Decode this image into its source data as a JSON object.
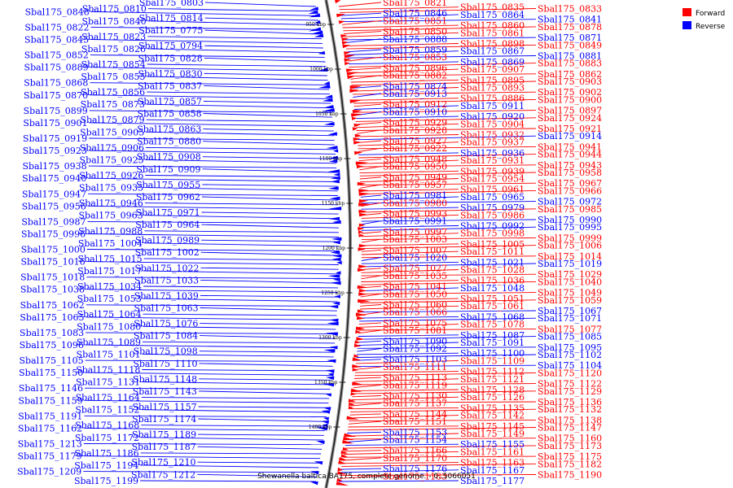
{
  "title": "Shewanella baltica BA175, complete genome. - 0..5066051",
  "legend": [
    {
      "label": "Forward",
      "color": "#ff0000"
    },
    {
      "label": "Reverse",
      "color": "#0000ff"
    }
  ],
  "ticks": [
    "950 kbp",
    "1000 kbp",
    "1050 kbp",
    "1100 kbp",
    "1150 kbp",
    "1200 kbp",
    "1250 kbp",
    "1300 kbp",
    "1350 kbp",
    "1400 kbp"
  ],
  "left_labels": [
    {
      "text": "Sbal175_0803",
      "color": "#0000ff"
    },
    {
      "text": "Sbal175_0810",
      "color": "#0000ff"
    },
    {
      "text": "Sbal175_0848",
      "color": "#0000ff"
    },
    {
      "text": "Sbal175_0814",
      "color": "#0000ff"
    },
    {
      "text": "Sbal175_0840",
      "color": "#0000ff"
    },
    {
      "text": "Sbal175_0822",
      "color": "#0000ff"
    },
    {
      "text": "Sbal175_0775",
      "color": "#0000ff"
    },
    {
      "text": "Sbal175_0823",
      "color": "#0000ff"
    },
    {
      "text": "Sbal175_0845",
      "color": "#0000ff"
    },
    {
      "text": "Sbal175_0794",
      "color": "#0000ff"
    },
    {
      "text": "Sbal175_0826",
      "color": "#0000ff"
    },
    {
      "text": "Sbal175_0852",
      "color": "#0000ff"
    },
    {
      "text": "Sbal175_0828",
      "color": "#0000ff"
    },
    {
      "text": "Sbal175_0854",
      "color": "#0000ff"
    },
    {
      "text": "Sbal175_0889",
      "color": "#0000ff"
    },
    {
      "text": "Sbal175_0830",
      "color": "#0000ff"
    },
    {
      "text": "Sbal175_0855",
      "color": "#0000ff"
    },
    {
      "text": "Sbal175_0868",
      "color": "#0000ff"
    },
    {
      "text": "Sbal175_0837",
      "color": "#0000ff"
    },
    {
      "text": "Sbal175_0856",
      "color": "#0000ff"
    },
    {
      "text": "Sbal175_0870",
      "color": "#0000ff"
    },
    {
      "text": "Sbal175_0857",
      "color": "#0000ff"
    },
    {
      "text": "Sbal175_0873",
      "color": "#0000ff"
    },
    {
      "text": "Sbal175_0899",
      "color": "#0000ff"
    },
    {
      "text": "Sbal175_0858",
      "color": "#0000ff"
    },
    {
      "text": "Sbal175_0879",
      "color": "#0000ff"
    },
    {
      "text": "Sbal175_0901",
      "color": "#0000ff"
    },
    {
      "text": "Sbal175_0863",
      "color": "#0000ff"
    },
    {
      "text": "Sbal175_0905",
      "color": "#0000ff"
    },
    {
      "text": "Sbal175_0919",
      "color": "#0000ff"
    },
    {
      "text": "Sbal175_0880",
      "color": "#0000ff"
    },
    {
      "text": "Sbal175_0906",
      "color": "#0000ff"
    },
    {
      "text": "Sbal175_0923",
      "color": "#0000ff"
    },
    {
      "text": "Sbal175_0908",
      "color": "#0000ff"
    },
    {
      "text": "Sbal175_0925",
      "color": "#0000ff"
    },
    {
      "text": "Sbal175_0938",
      "color": "#0000ff"
    },
    {
      "text": "Sbal175_0909",
      "color": "#0000ff"
    },
    {
      "text": "Sbal175_0926",
      "color": "#0000ff"
    },
    {
      "text": "Sbal175_0940",
      "color": "#0000ff"
    },
    {
      "text": "Sbal175_0955",
      "color": "#0000ff"
    },
    {
      "text": "Sbal175_0935",
      "color": "#0000ff"
    },
    {
      "text": "Sbal175_0947",
      "color": "#0000ff"
    },
    {
      "text": "Sbal175_0962",
      "color": "#0000ff"
    },
    {
      "text": "Sbal175_0946",
      "color": "#0000ff"
    },
    {
      "text": "Sbal175_0956",
      "color": "#0000ff"
    },
    {
      "text": "Sbal175_0971",
      "color": "#0000ff"
    },
    {
      "text": "Sbal175_0963",
      "color": "#0000ff"
    },
    {
      "text": "Sbal175_0987",
      "color": "#0000ff"
    },
    {
      "text": "Sbal175_0964",
      "color": "#0000ff"
    },
    {
      "text": "Sbal175_0988",
      "color": "#0000ff"
    },
    {
      "text": "Sbal175_0996",
      "color": "#0000ff"
    },
    {
      "text": "Sbal175_0989",
      "color": "#0000ff"
    },
    {
      "text": "Sbal175_1004",
      "color": "#0000ff"
    },
    {
      "text": "Sbal175_1000",
      "color": "#0000ff"
    },
    {
      "text": "Sbal175_1002",
      "color": "#0000ff"
    },
    {
      "text": "Sbal175_1015",
      "color": "#0000ff"
    },
    {
      "text": "Sbal175_1016",
      "color": "#0000ff"
    },
    {
      "text": "Sbal175_1022",
      "color": "#0000ff"
    },
    {
      "text": "Sbal175_1017",
      "color": "#0000ff"
    },
    {
      "text": "Sbal175_1018",
      "color": "#0000ff"
    },
    {
      "text": "Sbal175_1033",
      "color": "#0000ff"
    },
    {
      "text": "Sbal175_1034",
      "color": "#0000ff"
    },
    {
      "text": "Sbal175_1038",
      "color": "#0000ff"
    },
    {
      "text": "Sbal175_1039",
      "color": "#0000ff"
    },
    {
      "text": "Sbal175_1053",
      "color": "#0000ff"
    },
    {
      "text": "Sbal175_1062",
      "color": "#0000ff"
    },
    {
      "text": "Sbal175_1063",
      "color": "#0000ff"
    },
    {
      "text": "Sbal175_1064",
      "color": "#0000ff"
    },
    {
      "text": "Sbal175_1065",
      "color": "#0000ff"
    },
    {
      "text": "Sbal175_1076",
      "color": "#0000ff"
    },
    {
      "text": "Sbal175_1080",
      "color": "#0000ff"
    },
    {
      "text": "Sbal175_1083",
      "color": "#0000ff"
    },
    {
      "text": "Sbal175_1084",
      "color": "#0000ff"
    },
    {
      "text": "Sbal175_1089",
      "color": "#0000ff"
    },
    {
      "text": "Sbal175_1096",
      "color": "#0000ff"
    },
    {
      "text": "Sbal175_1098",
      "color": "#0000ff"
    },
    {
      "text": "Sbal175_1101",
      "color": "#0000ff"
    },
    {
      "text": "Sbal175_1105",
      "color": "#0000ff"
    },
    {
      "text": "Sbal175_1110",
      "color": "#0000ff"
    },
    {
      "text": "Sbal175_1118",
      "color": "#0000ff"
    },
    {
      "text": "Sbal175_1150",
      "color": "#0000ff"
    },
    {
      "text": "Sbal175_1148",
      "color": "#0000ff"
    },
    {
      "text": "Sbal175_1131",
      "color": "#0000ff"
    },
    {
      "text": "Sbal175_1146",
      "color": "#0000ff"
    },
    {
      "text": "Sbal175_1143",
      "color": "#0000ff"
    },
    {
      "text": "Sbal175_1164",
      "color": "#0000ff"
    },
    {
      "text": "Sbal175_1159",
      "color": "#0000ff"
    },
    {
      "text": "Sbal175_1157",
      "color": "#0000ff"
    },
    {
      "text": "Sbal175_1152",
      "color": "#0000ff"
    },
    {
      "text": "Sbal175_1191",
      "color": "#0000ff"
    },
    {
      "text": "Sbal175_1174",
      "color": "#0000ff"
    },
    {
      "text": "Sbal175_1168",
      "color": "#0000ff"
    },
    {
      "text": "Sbal175_1162",
      "color": "#0000ff"
    },
    {
      "text": "Sbal175_1189",
      "color": "#0000ff"
    },
    {
      "text": "Sbal175_1172",
      "color": "#0000ff"
    },
    {
      "text": "Sbal175_1213",
      "color": "#0000ff"
    },
    {
      "text": "Sbal175_1187",
      "color": "#0000ff"
    },
    {
      "text": "Sbal175_1186",
      "color": "#0000ff"
    },
    {
      "text": "Sbal175_1179",
      "color": "#0000ff"
    },
    {
      "text": "Sbal175_1210",
      "color": "#0000ff"
    },
    {
      "text": "Sbal175_1194",
      "color": "#0000ff"
    },
    {
      "text": "Sbal175_1209",
      "color": "#0000ff"
    },
    {
      "text": "Sbal175_1212",
      "color": "#0000ff"
    },
    {
      "text": "Sbal175_1199",
      "color": "#0000ff"
    }
  ],
  "right_labels": [
    {
      "text": "Sbal175_0821",
      "color": "#ff0000"
    },
    {
      "text": "Sbal175_0835",
      "color": "#ff0000"
    },
    {
      "text": "Sbal175_0833",
      "color": "#ff0000"
    },
    {
      "text": "Sbal175_0846",
      "color": "#0000ff"
    },
    {
      "text": "Sbal175_0864",
      "color": "#0000ff"
    },
    {
      "text": "Sbal175_0841",
      "color": "#0000ff"
    },
    {
      "text": "Sbal175_0851",
      "color": "#ff0000"
    },
    {
      "text": "Sbal175_0860",
      "color": "#ff0000"
    },
    {
      "text": "Sbal175_0878",
      "color": "#ff0000"
    },
    {
      "text": "Sbal175_0850",
      "color": "#ff0000"
    },
    {
      "text": "Sbal175_0861",
      "color": "#ff0000"
    },
    {
      "text": "Sbal175_0871",
      "color": "#0000ff"
    },
    {
      "text": "Sbal175_0888",
      "color": "#0000ff"
    },
    {
      "text": "Sbal175_0898",
      "color": "#ff0000"
    },
    {
      "text": "Sbal175_0849",
      "color": "#ff0000"
    },
    {
      "text": "Sbal175_0859",
      "color": "#0000ff"
    },
    {
      "text": "Sbal175_0867",
      "color": "#0000ff"
    },
    {
      "text": "Sbal175_0881",
      "color": "#0000ff"
    },
    {
      "text": "Sbal175_0853",
      "color": "#ff0000"
    },
    {
      "text": "Sbal175_0869",
      "color": "#0000ff"
    },
    {
      "text": "Sbal175_0883",
      "color": "#ff0000"
    },
    {
      "text": "Sbal175_0896",
      "color": "#ff0000"
    },
    {
      "text": "Sbal175_0907",
      "color": "#ff0000"
    },
    {
      "text": "Sbal175_0862",
      "color": "#ff0000"
    },
    {
      "text": "Sbal175_0882",
      "color": "#ff0000"
    },
    {
      "text": "Sbal175_0895",
      "color": "#ff0000"
    },
    {
      "text": "Sbal175_0903",
      "color": "#ff0000"
    },
    {
      "text": "Sbal175_0874",
      "color": "#0000ff"
    },
    {
      "text": "Sbal175_0893",
      "color": "#ff0000"
    },
    {
      "text": "Sbal175_0902",
      "color": "#ff0000"
    },
    {
      "text": "Sbal175_0913",
      "color": "#0000ff"
    },
    {
      "text": "Sbal175_0886",
      "color": "#ff0000"
    },
    {
      "text": "Sbal175_0900",
      "color": "#ff0000"
    },
    {
      "text": "Sbal175_0912",
      "color": "#ff0000"
    },
    {
      "text": "Sbal175_0911",
      "color": "#0000ff"
    },
    {
      "text": "Sbal175_0897",
      "color": "#ff0000"
    },
    {
      "text": "Sbal175_0910",
      "color": "#0000ff"
    },
    {
      "text": "Sbal175_0920",
      "color": "#0000ff"
    },
    {
      "text": "Sbal175_0924",
      "color": "#ff0000"
    },
    {
      "text": "Sbal175_0929",
      "color": "#ff0000"
    },
    {
      "text": "Sbal175_0904",
      "color": "#ff0000"
    },
    {
      "text": "Sbal175_0921",
      "color": "#ff0000"
    },
    {
      "text": "Sbal175_0928",
      "color": "#ff0000"
    },
    {
      "text": "Sbal175_0932",
      "color": "#ff0000"
    },
    {
      "text": "Sbal175_0914",
      "color": "#0000ff"
    },
    {
      "text": "Sbal175_0927",
      "color": "#ff0000"
    },
    {
      "text": "Sbal175_0937",
      "color": "#ff0000"
    },
    {
      "text": "Sbal175_0941",
      "color": "#ff0000"
    },
    {
      "text": "Sbal175_0922",
      "color": "#ff0000"
    },
    {
      "text": "Sbal175_0936",
      "color": "#0000ff"
    },
    {
      "text": "Sbal175_0944",
      "color": "#ff0000"
    },
    {
      "text": "Sbal175_0948",
      "color": "#ff0000"
    },
    {
      "text": "Sbal175_0931",
      "color": "#ff0000"
    },
    {
      "text": "Sbal175_0943",
      "color": "#ff0000"
    },
    {
      "text": "Sbal175_0950",
      "color": "#ff0000"
    },
    {
      "text": "Sbal175_0939",
      "color": "#ff0000"
    },
    {
      "text": "Sbal175_0958",
      "color": "#ff0000"
    },
    {
      "text": "Sbal175_0949",
      "color": "#ff0000"
    },
    {
      "text": "Sbal175_0954",
      "color": "#ff0000"
    },
    {
      "text": "Sbal175_0967",
      "color": "#ff0000"
    },
    {
      "text": "Sbal175_0957",
      "color": "#ff0000"
    },
    {
      "text": "Sbal175_0961",
      "color": "#ff0000"
    },
    {
      "text": "Sbal175_0966",
      "color": "#ff0000"
    },
    {
      "text": "Sbal175_0981",
      "color": "#0000ff"
    },
    {
      "text": "Sbal175_0965",
      "color": "#0000ff"
    },
    {
      "text": "Sbal175_0972",
      "color": "#0000ff"
    },
    {
      "text": "Sbal175_0980",
      "color": "#ff0000"
    },
    {
      "text": "Sbal175_0979",
      "color": "#0000ff"
    },
    {
      "text": "Sbal175_0985",
      "color": "#ff0000"
    },
    {
      "text": "Sbal175_0993",
      "color": "#ff0000"
    },
    {
      "text": "Sbal175_0986",
      "color": "#ff0000"
    },
    {
      "text": "Sbal175_0990",
      "color": "#0000ff"
    },
    {
      "text": "Sbal175_0991",
      "color": "#0000ff"
    },
    {
      "text": "Sbal175_0992",
      "color": "#0000ff"
    },
    {
      "text": "Sbal175_0995",
      "color": "#0000ff"
    },
    {
      "text": "Sbal175_0997",
      "color": "#ff0000"
    },
    {
      "text": "Sbal175_0998",
      "color": "#ff0000"
    },
    {
      "text": "Sbal175_0999",
      "color": "#ff0000"
    },
    {
      "text": "Sbal175_1003",
      "color": "#ff0000"
    },
    {
      "text": "Sbal175_1005",
      "color": "#ff0000"
    },
    {
      "text": "Sbal175_1006",
      "color": "#ff0000"
    },
    {
      "text": "Sbal175_1007",
      "color": "#ff0000"
    },
    {
      "text": "Sbal175_1011",
      "color": "#ff0000"
    },
    {
      "text": "Sbal175_1014",
      "color": "#ff0000"
    },
    {
      "text": "Sbal175_1020",
      "color": "#0000ff"
    },
    {
      "text": "Sbal175_1021",
      "color": "#0000ff"
    },
    {
      "text": "Sbal175_1019",
      "color": "#0000ff"
    },
    {
      "text": "Sbal175_1027",
      "color": "#ff0000"
    },
    {
      "text": "Sbal175_1028",
      "color": "#ff0000"
    },
    {
      "text": "Sbal175_1029",
      "color": "#ff0000"
    },
    {
      "text": "Sbal175_1035",
      "color": "#ff0000"
    },
    {
      "text": "Sbal175_1036",
      "color": "#ff0000"
    },
    {
      "text": "Sbal175_1040",
      "color": "#ff0000"
    },
    {
      "text": "Sbal175_1041",
      "color": "#ff0000"
    },
    {
      "text": "Sbal175_1048",
      "color": "#0000ff"
    },
    {
      "text": "Sbal175_1049",
      "color": "#ff0000"
    },
    {
      "text": "Sbal175_1050",
      "color": "#ff0000"
    },
    {
      "text": "Sbal175_1051",
      "color": "#ff0000"
    },
    {
      "text": "Sbal175_1059",
      "color": "#ff0000"
    },
    {
      "text": "Sbal175_1060",
      "color": "#ff0000"
    },
    {
      "text": "Sbal175_1061",
      "color": "#ff0000"
    },
    {
      "text": "Sbal175_1067",
      "color": "#0000ff"
    },
    {
      "text": "Sbal175_1066",
      "color": "#ff0000"
    },
    {
      "text": "Sbal175_1068",
      "color": "#0000ff"
    },
    {
      "text": "Sbal175_1071",
      "color": "#0000ff"
    },
    {
      "text": "Sbal175_1075",
      "color": "#ff0000"
    },
    {
      "text": "Sbal175_1078",
      "color": "#ff0000"
    },
    {
      "text": "Sbal175_1077",
      "color": "#ff0000"
    },
    {
      "text": "Sbal175_1081",
      "color": "#ff0000"
    },
    {
      "text": "Sbal175_1087",
      "color": "#0000ff"
    },
    {
      "text": "Sbal175_1085",
      "color": "#0000ff"
    },
    {
      "text": "Sbal175_1090",
      "color": "#0000ff"
    },
    {
      "text": "Sbal175_1091",
      "color": "#0000ff"
    },
    {
      "text": "Sbal175_1095",
      "color": "#0000ff"
    },
    {
      "text": "Sbal175_1092",
      "color": "#0000ff"
    },
    {
      "text": "Sbal175_1100",
      "color": "#0000ff"
    },
    {
      "text": "Sbal175_1102",
      "color": "#0000ff"
    },
    {
      "text": "Sbal175_1103",
      "color": "#0000ff"
    },
    {
      "text": "Sbal175_1109",
      "color": "#ff0000"
    },
    {
      "text": "Sbal175_1104",
      "color": "#0000ff"
    },
    {
      "text": "Sbal175_1111",
      "color": "#ff0000"
    },
    {
      "text": "Sbal175_1112",
      "color": "#ff0000"
    },
    {
      "text": "Sbal175_1120",
      "color": "#ff0000"
    },
    {
      "text": "Sbal175_1113",
      "color": "#ff0000"
    },
    {
      "text": "Sbal175_1121",
      "color": "#ff0000"
    },
    {
      "text": "Sbal175_1122",
      "color": "#ff0000"
    },
    {
      "text": "Sbal175_1119",
      "color": "#ff0000"
    },
    {
      "text": "Sbal175_1128",
      "color": "#ff0000"
    },
    {
      "text": "Sbal175_1129",
      "color": "#ff0000"
    },
    {
      "text": "Sbal175_1130",
      "color": "#ff0000"
    },
    {
      "text": "Sbal175_1126",
      "color": "#ff0000"
    },
    {
      "text": "Sbal175_1136",
      "color": "#ff0000"
    },
    {
      "text": "Sbal175_1137",
      "color": "#ff0000"
    },
    {
      "text": "Sbal175_1135",
      "color": "#ff0000"
    },
    {
      "text": "Sbal175_1132",
      "color": "#ff0000"
    },
    {
      "text": "Sbal175_1144",
      "color": "#ff0000"
    },
    {
      "text": "Sbal175_1142",
      "color": "#ff0000"
    },
    {
      "text": "Sbal175_1138",
      "color": "#ff0000"
    },
    {
      "text": "Sbal175_1151",
      "color": "#ff0000"
    },
    {
      "text": "Sbal175_1145",
      "color": "#ff0000"
    },
    {
      "text": "Sbal175_1147",
      "color": "#ff0000"
    },
    {
      "text": "Sbal175_1153",
      "color": "#0000ff"
    },
    {
      "text": "Sbal175_1149",
      "color": "#ff0000"
    },
    {
      "text": "Sbal175_1160",
      "color": "#ff0000"
    },
    {
      "text": "Sbal175_1154",
      "color": "#0000ff"
    },
    {
      "text": "Sbal175_1155",
      "color": "#0000ff"
    },
    {
      "text": "Sbal175_1173",
      "color": "#ff0000"
    },
    {
      "text": "Sbal175_1166",
      "color": "#ff0000"
    },
    {
      "text": "Sbal175_1161",
      "color": "#ff0000"
    },
    {
      "text": "Sbal175_1175",
      "color": "#ff0000"
    },
    {
      "text": "Sbal175_1170",
      "color": "#ff0000"
    },
    {
      "text": "Sbal175_1163",
      "color": "#ff0000"
    },
    {
      "text": "Sbal175_1182",
      "color": "#ff0000"
    },
    {
      "text": "Sbal175_1176",
      "color": "#0000ff"
    },
    {
      "text": "Sbal175_1167",
      "color": "#0000ff"
    },
    {
      "text": "Sbal175_1190",
      "color": "#ff0000"
    },
    {
      "text": "Sbal175_1183",
      "color": "#ff0000"
    },
    {
      "text": "Sbal175_1177",
      "color": "#0000ff"
    }
  ]
}
